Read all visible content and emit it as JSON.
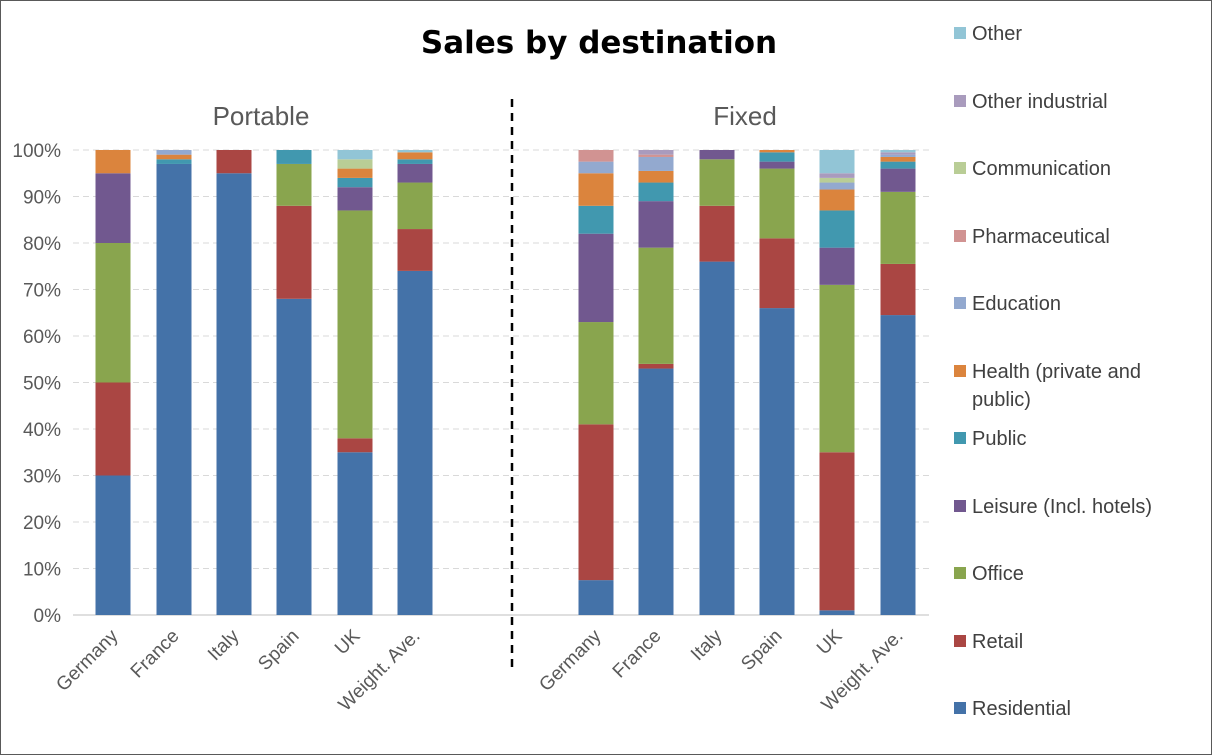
{
  "chart_data": {
    "type": "bar",
    "stacked": true,
    "title": "Sales by destination",
    "y_ticks": [
      "0%",
      "10%",
      "20%",
      "30%",
      "40%",
      "50%",
      "60%",
      "70%",
      "80%",
      "90%",
      "100%"
    ],
    "ylim": [
      0,
      100
    ],
    "legend_position": "right",
    "series": [
      {
        "name": "Residential",
        "color": "#4472a8"
      },
      {
        "name": "Retail",
        "color": "#aa4643"
      },
      {
        "name": "Office",
        "color": "#89a54e"
      },
      {
        "name": "Leisure (Incl. hotels)",
        "color": "#71588f"
      },
      {
        "name": "Public",
        "color": "#4198af"
      },
      {
        "name": "Health (private and public)",
        "color": "#db843d"
      },
      {
        "name": "Education",
        "color": "#93a9cf"
      },
      {
        "name": "Pharmaceutical",
        "color": "#d19392"
      },
      {
        "name": "Communication",
        "color": "#b9cd96"
      },
      {
        "name": "Other industrial",
        "color": "#a99bbd"
      },
      {
        "name": "Other",
        "color": "#92c5d6"
      }
    ],
    "groups": [
      {
        "name": "Portable",
        "categories": [
          "Germany",
          "France",
          "Italy",
          "Spain",
          "UK",
          "Weight. Ave."
        ],
        "values": [
          [
            30,
            20,
            30,
            15,
            0,
            5,
            0,
            0,
            0,
            0,
            0
          ],
          [
            97,
            0,
            0,
            0,
            1,
            1,
            1,
            0,
            0,
            0,
            0
          ],
          [
            95,
            5,
            0,
            0,
            0,
            0,
            0,
            0,
            0,
            0,
            0
          ],
          [
            68,
            20,
            9,
            0,
            3,
            0,
            0,
            0,
            0,
            0,
            0
          ],
          [
            35,
            3,
            49,
            5,
            2,
            2,
            0,
            0,
            2,
            0,
            2
          ],
          [
            74,
            9,
            10,
            4,
            1,
            1.5,
            0,
            0,
            0,
            0,
            0.5
          ]
        ]
      },
      {
        "name": "Fixed",
        "categories": [
          "Germany",
          "France",
          "Italy",
          "Spain",
          "UK",
          "Weight. Ave."
        ],
        "values": [
          [
            7.5,
            33.5,
            22,
            19,
            6,
            7,
            2.5,
            2.5,
            0,
            0,
            0
          ],
          [
            53,
            1,
            25,
            10,
            4,
            2.5,
            3,
            0.5,
            0,
            1,
            0
          ],
          [
            76,
            12,
            10,
            2,
            0,
            0,
            0,
            0,
            0,
            0,
            0
          ],
          [
            66,
            15,
            15,
            1.5,
            2,
            0.5,
            0,
            0,
            0,
            0,
            0
          ],
          [
            1,
            34,
            36,
            8,
            8,
            4.5,
            1.5,
            0,
            1,
            1,
            5
          ],
          [
            64.5,
            11,
            15.5,
            5,
            1.5,
            1,
            0.5,
            0,
            0,
            0.5,
            0.5
          ]
        ]
      }
    ]
  }
}
